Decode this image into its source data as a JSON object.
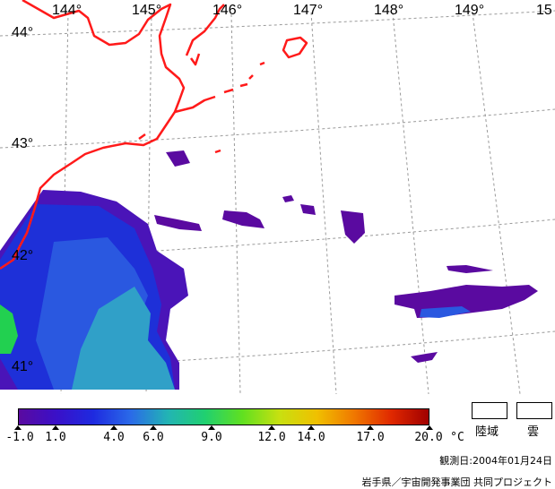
{
  "map": {
    "lon_labels": [
      "144°",
      "145°",
      "146°",
      "147°",
      "148°",
      "149°",
      "15"
    ],
    "lat_labels": [
      "44°",
      "43°",
      "42°",
      "41°"
    ],
    "coast_color": "#ff1a1a",
    "grid_color": "#999999"
  },
  "legend": {
    "ticks": [
      "-1.0",
      "1.0",
      "4.0",
      "6.0",
      "9.0",
      "12.0",
      "14.0",
      "17.0",
      "20.0"
    ],
    "unit": "°C",
    "colors": [
      "#5a0aa0",
      "#3a10c8",
      "#1e2ae0",
      "#2a6ae8",
      "#22b4b4",
      "#20d070",
      "#60e020",
      "#c8e010",
      "#f0c000",
      "#f07800",
      "#e02800",
      "#a00000"
    ],
    "land_label": "陸域",
    "cloud_label": "雲"
  },
  "footer": {
    "date": "観測日:2004年01月24日",
    "credit": "岩手県／宇宙開発事業団 共同プロジェクト"
  }
}
